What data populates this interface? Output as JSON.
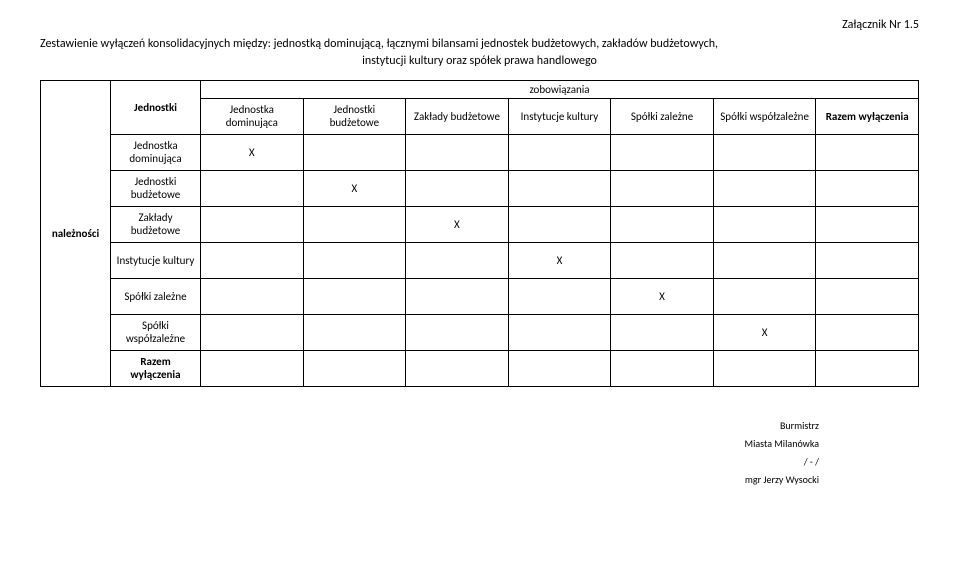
{
  "attachment_label": "Załącznik Nr 1.5",
  "title_line1": "Zestawienie wyłączeń konsolidacyjnych między: jednostką dominującą, łącznymi bilansami jednostek budżetowych, zakładów budżetowych,",
  "title_line2": "instytucji kultury oraz spółek prawa handlowego",
  "col_super": "zobowiązania",
  "side_label": "należności",
  "row_header_top": "Jednostki",
  "cols": {
    "c1": "Jednostka dominująca",
    "c2": "Jednostki budżetowe",
    "c3": "Zakłady budżetowe",
    "c4": "Instytucje kultury",
    "c5": "Spółki zależne",
    "c6": "Spółki współzależne",
    "c7": "Razem wyłączenia"
  },
  "rows": {
    "r1": "Jednostka dominująca",
    "r2": "Jednostki budżetowe",
    "r3": "Zakłady budżetowe",
    "r4": "Instytucje kultury",
    "r5": "Spółki zależne",
    "r6": "Spółki współzależne",
    "r7": "Razem wyłączenia"
  },
  "cells": {
    "r1c1": "X",
    "r2c2": "X",
    "r3c3": "X",
    "r4c4": "X",
    "r5c5": "X",
    "r6c6": "X"
  },
  "footer": {
    "l1": "Burmistrz",
    "l2": "Miasta Milanówka",
    "l3": "/ - /",
    "l4": "mgr Jerzy Wysocki"
  }
}
